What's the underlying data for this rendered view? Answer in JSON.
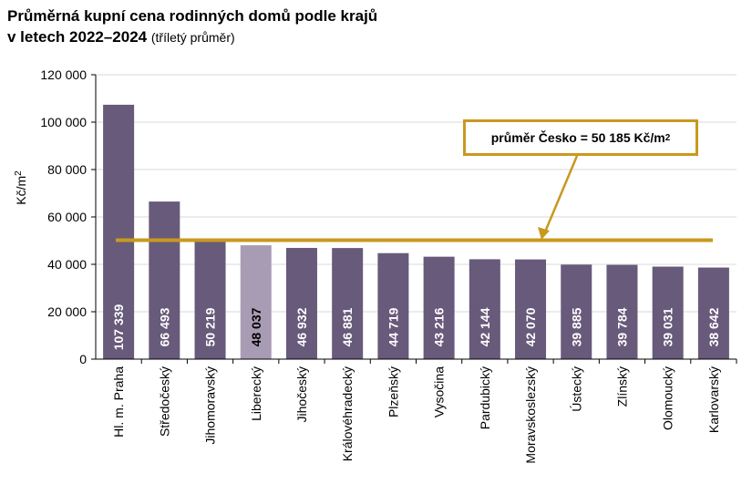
{
  "title": {
    "line1": "Průměrná kupní cena rodinných domů podle krajů",
    "line2": "v letech 2022–2024",
    "subtitle": "(tříletý průměr)"
  },
  "annotation": {
    "text_before": "průměr Česko = 50 185 Kč/m",
    "sup": "2"
  },
  "chart_data": {
    "type": "bar",
    "categories": [
      "Hl. m. Praha",
      "Středočeský",
      "Jihomoravský",
      "Liberecký",
      "Jihočeský",
      "Královéhradecký",
      "Plzeňský",
      "Vysočina",
      "Pardubický",
      "Moravskoslezský",
      "Ústecký",
      "Zlínský",
      "Olomoucký",
      "Karlovarský"
    ],
    "values": [
      107339,
      66493,
      50219,
      48037,
      46932,
      46881,
      44719,
      43216,
      42144,
      42070,
      39885,
      39784,
      39031,
      38642
    ],
    "value_labels": [
      "107 339",
      "66 493",
      "50 219",
      "48 037",
      "46 932",
      "46 881",
      "44 719",
      "43 216",
      "42 144",
      "42 070",
      "39 885",
      "39 784",
      "39 031",
      "38 642"
    ],
    "highlight_category": "Liberecký",
    "ylabel": "Kč/m",
    "ylabel_sup": "2",
    "ylim": [
      0,
      120000
    ],
    "yticks": [
      0,
      20000,
      40000,
      60000,
      80000,
      100000,
      120000
    ],
    "ytick_labels": [
      "0",
      "20 000",
      "40 000",
      "60 000",
      "80 000",
      "100 000",
      "120 000"
    ],
    "reference_line": 50185,
    "grid": true,
    "colors": {
      "bar": "#675a7a",
      "bar_highlight": "#a89cb4",
      "reference": "#c8991e",
      "grid": "#d9d9d9"
    }
  }
}
